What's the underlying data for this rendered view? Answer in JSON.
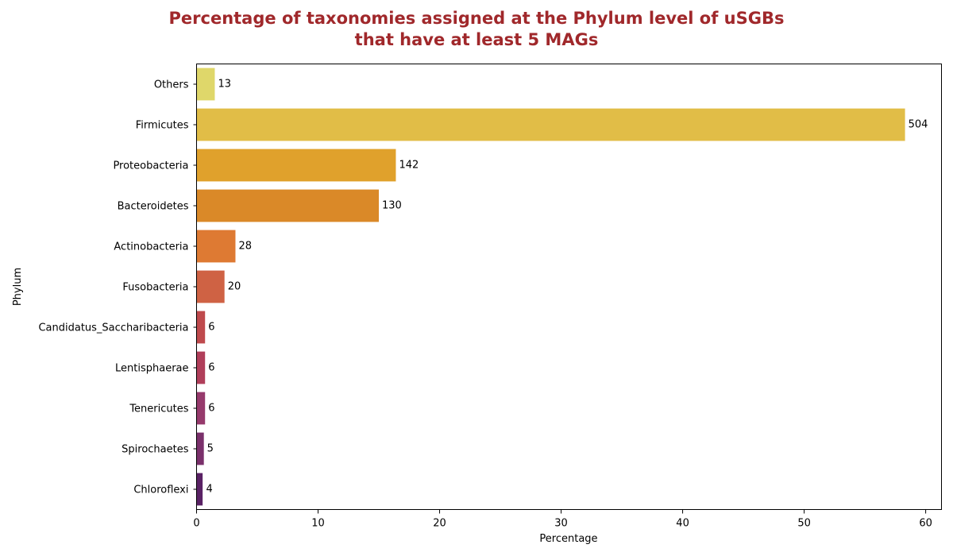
{
  "chart_data": {
    "type": "bar",
    "orientation": "horizontal",
    "title_lines": [
      "Percentage of taxonomies assigned at the Phylum level of uSGBs",
      "that have at least 5 MAGs"
    ],
    "xlabel": "Percentage",
    "ylabel": "Phylum",
    "xlim": [
      0,
      61.3
    ],
    "xticks": [
      0,
      10,
      20,
      30,
      40,
      50,
      60
    ],
    "grid": false,
    "legend": "none",
    "categories": [
      "Others",
      "Firmicutes",
      "Proteobacteria",
      "Bacteroidetes",
      "Actinobacteria",
      "Fusobacteria",
      "Candidatus_Saccharibacteria",
      "Lentisphaerae",
      "Tenericutes",
      "Spirochaetes",
      "Chloroflexi"
    ],
    "values": [
      1.5,
      58.3,
      16.4,
      15.0,
      3.2,
      2.3,
      0.7,
      0.7,
      0.7,
      0.6,
      0.5
    ],
    "bar_labels": [
      "13",
      "504",
      "142",
      "130",
      "28",
      "20",
      "6",
      "6",
      "6",
      "5",
      "4"
    ],
    "colors": [
      "#dfd76a",
      "#e1bd47",
      "#e0a12c",
      "#da8928",
      "#de7a33",
      "#cf6244",
      "#bf4a4d",
      "#b03e5a",
      "#963a6c",
      "#7a306b",
      "#5a2265"
    ]
  }
}
